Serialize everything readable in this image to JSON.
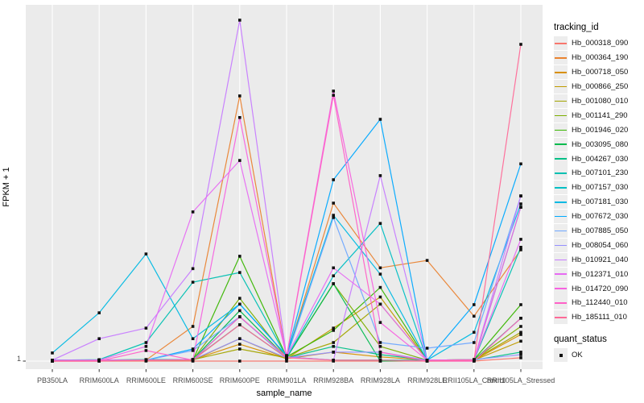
{
  "figure": {
    "background": "#ffffff",
    "panel_background": "#ebebeb",
    "grid_color": "#ffffff",
    "tick_mark_color": "#333333",
    "tick_label_color": "#4d4d4d",
    "point_color": "#111111"
  },
  "chart_data": {
    "type": "line",
    "xlabel": "sample_name",
    "ylabel": "FPKM + 1",
    "y_scale": "log10",
    "ylim": [
      1,
      1100
    ],
    "y_tick_labels": [
      "1"
    ],
    "grid": "major-only",
    "legend_position": "right",
    "categories": [
      "PB350LA",
      "RRIM600LA",
      "RRIM600LE",
      "RRIM600SE",
      "RRIM600PE",
      "RRIM901LA",
      "RRIM928BA",
      "RRIM928LA",
      "RRIM928LE",
      "RRII105LA_Control",
      "RRII105LA_Stressed"
    ],
    "point_legend": {
      "title": "quant_status",
      "label": "OK",
      "shape": "filled-square"
    },
    "series": [
      {
        "name": "Hb_000318_090",
        "color": "#F8766D",
        "values": [
          1.0,
          1.0,
          1.0,
          1.0,
          1.0,
          1.0,
          1.0,
          1.0,
          1.0,
          1.0,
          1.07
        ]
      },
      {
        "name": "Hb_000364_190",
        "color": "#EA8331",
        "values": [
          1.02,
          1.02,
          1.02,
          2.03,
          224,
          1.09,
          25.1,
          6.7,
          7.8,
          2.5,
          9.7
        ]
      },
      {
        "name": "Hb_000718_050",
        "color": "#D89000",
        "values": [
          1.02,
          1.02,
          1.02,
          1.03,
          1.41,
          1.05,
          1.2,
          1.09,
          1.02,
          1.02,
          1.72
        ]
      },
      {
        "name": "Hb_000866_250",
        "color": "#C09B00",
        "values": [
          1.02,
          1.02,
          1.02,
          1.02,
          1.58,
          1.05,
          1.96,
          3.7,
          1.02,
          1.02,
          1.5
        ]
      },
      {
        "name": "Hb_001080_010",
        "color": "#A3A500",
        "values": [
          1.02,
          1.02,
          1.03,
          1.03,
          1.28,
          1.07,
          1.46,
          3.2,
          1.02,
          1.03,
          1.8
        ]
      },
      {
        "name": "Hb_001141_290",
        "color": "#7CAE00",
        "values": [
          1.0,
          1.02,
          1.02,
          1.03,
          3.6,
          1.07,
          4.85,
          1.35,
          1.02,
          1.03,
          2.03
        ]
      },
      {
        "name": "Hb_001946_020",
        "color": "#39B600",
        "values": [
          1.02,
          1.02,
          1.02,
          1.02,
          8.5,
          1.09,
          1.87,
          4.5,
          1.02,
          1.03,
          3.16
        ]
      },
      {
        "name": "Hb_003095_080",
        "color": "#00BB4E",
        "values": [
          1.02,
          1.02,
          1.02,
          1.03,
          2.8,
          1.07,
          4.85,
          1.0,
          1.02,
          1.02,
          2.4
        ]
      },
      {
        "name": "Hb_004267_030",
        "color": "#00C087",
        "values": [
          1.0,
          1.02,
          1.03,
          1.03,
          2.1,
          1.07,
          1.35,
          1.14,
          1.02,
          1.02,
          1.2
        ]
      },
      {
        "name": "Hb_007101_230",
        "color": "#00C0B2",
        "values": [
          1.02,
          1.03,
          1.46,
          5.0,
          6.1,
          1.09,
          1.02,
          1.02,
          1.02,
          1.02,
          10.2
        ]
      },
      {
        "name": "Hb_007157_030",
        "color": "#00BFC4",
        "values": [
          1.02,
          1.02,
          1.03,
          1.03,
          2.47,
          1.07,
          5.7,
          16.6,
          1.02,
          1.02,
          23.1
        ]
      },
      {
        "name": "Hb_007181_030",
        "color": "#00B9E3",
        "values": [
          1.18,
          2.68,
          8.9,
          1.58,
          3.2,
          1.12,
          19.6,
          5.9,
          1.02,
          1.8,
          24.7
        ]
      },
      {
        "name": "Hb_007672_030",
        "color": "#00A9FF",
        "values": [
          1.02,
          1.02,
          1.02,
          1.28,
          3.2,
          1.12,
          40.5,
          139,
          1.02,
          3.16,
          56
        ]
      },
      {
        "name": "Hb_007885_050",
        "color": "#6FA8FF",
        "values": [
          1.02,
          1.02,
          1.02,
          1.24,
          2.47,
          1.07,
          18.7,
          1.46,
          1.3,
          1.46,
          29.1
        ]
      },
      {
        "name": "Hb_008054_060",
        "color": "#9590FF",
        "values": [
          1.0,
          1.02,
          1.02,
          1.03,
          1.58,
          1.07,
          1.2,
          1.2,
          1.02,
          1.03,
          1.14
        ]
      },
      {
        "name": "Hb_010921_040",
        "color": "#C77CFF",
        "values": [
          1.02,
          1.58,
          1.96,
          6.6,
          1050,
          1.09,
          1.02,
          44,
          1.02,
          1.02,
          29.1
        ]
      },
      {
        "name": "Hb_012371_010",
        "color": "#E76BF3",
        "values": [
          1.02,
          1.02,
          1.35,
          21,
          60,
          1.1,
          6.7,
          3.2,
          1.02,
          1.03,
          12
        ]
      },
      {
        "name": "Hb_014720_090",
        "color": "#F763E0",
        "values": [
          1.0,
          1.02,
          1.02,
          1.03,
          144,
          1.09,
          247,
          2.2,
          1.02,
          1.02,
          23.1
        ]
      },
      {
        "name": "Hb_112440_010",
        "color": "#FF61C7",
        "values": [
          1.0,
          1.0,
          1.24,
          1.02,
          2.47,
          1.09,
          227,
          1.2,
          1.0,
          1.0,
          2.4
        ]
      },
      {
        "name": "Hb_185111_010",
        "color": "#FF6A98",
        "values": [
          1.0,
          1.0,
          1.02,
          1.02,
          2.1,
          1.07,
          1.02,
          1.02,
          1.0,
          1.02,
          641
        ]
      }
    ]
  },
  "legend": {
    "tracking_title": "tracking_id",
    "quant_title": "quant_status",
    "quant_items": [
      {
        "label": "OK"
      }
    ]
  }
}
